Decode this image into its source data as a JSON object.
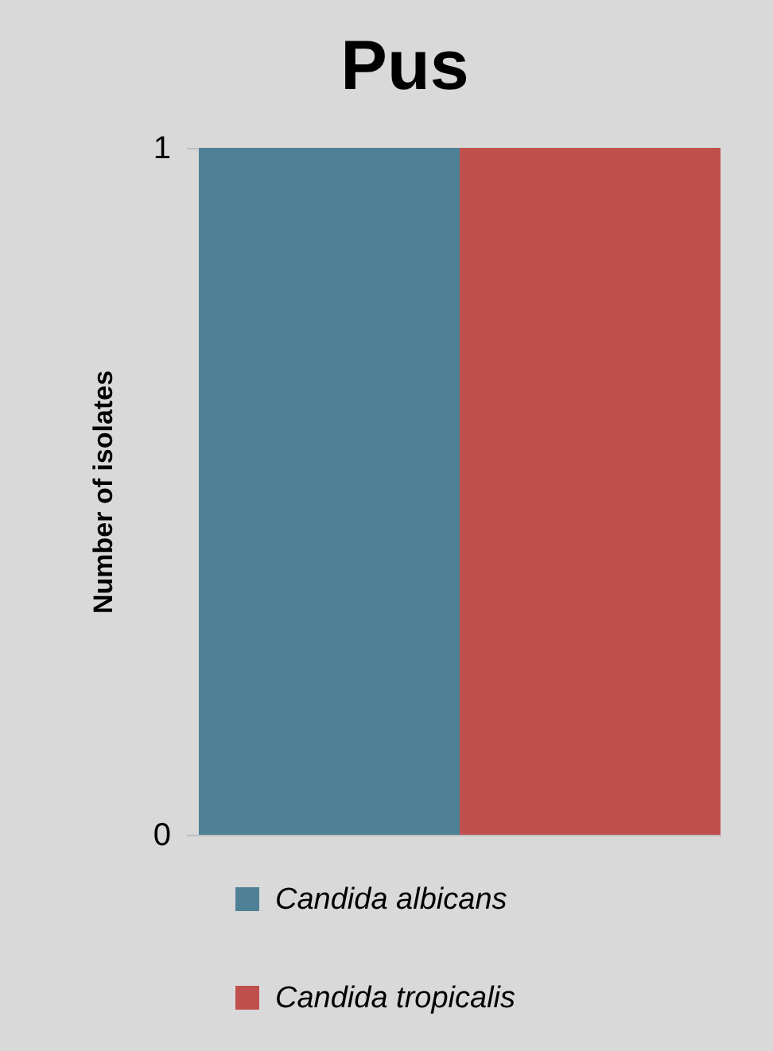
{
  "chart_data": {
    "type": "bar",
    "title": "Pus",
    "ylabel": "Number of isolates",
    "categories": [
      null
    ],
    "series": [
      {
        "name": "Candida albicans",
        "color": "#4e8196",
        "values": [
          1
        ]
      },
      {
        "name": "Candida tropicalis",
        "color": "#c0504d",
        "values": [
          1
        ]
      }
    ],
    "ylim": [
      0,
      1
    ],
    "yticks": [
      0,
      1
    ],
    "legend": "bottom",
    "tick_labels": "y"
  }
}
